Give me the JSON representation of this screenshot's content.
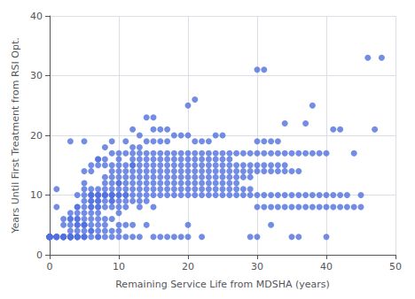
{
  "chart_data": {
    "type": "scatter",
    "xlabel": "Remaining Service Life from MDSHA (years)",
    "ylabel": "Years Until First Treatment from RSI Opt.",
    "x": [
      0,
      0,
      0,
      0,
      0,
      0,
      0,
      0,
      0,
      0,
      0,
      0,
      0,
      0,
      0,
      0,
      0,
      0,
      0,
      1,
      1,
      1,
      1,
      1,
      1,
      1,
      2,
      2,
      2,
      2,
      2,
      2,
      2,
      2,
      2,
      3,
      3,
      3,
      3,
      3,
      3,
      3,
      3,
      3,
      3,
      3,
      3,
      3,
      3,
      3,
      4,
      4,
      4,
      4,
      4,
      4,
      4,
      4,
      4,
      4,
      4,
      4,
      4,
      4,
      5,
      5,
      5,
      5,
      5,
      5,
      5,
      5,
      5,
      5,
      5,
      5,
      5,
      5,
      5,
      5,
      6,
      6,
      6,
      6,
      6,
      6,
      6,
      6,
      6,
      6,
      6,
      6,
      6,
      6,
      6,
      6,
      7,
      7,
      7,
      7,
      7,
      7,
      7,
      7,
      7,
      7,
      7,
      7,
      7,
      7,
      7,
      7,
      7,
      8,
      8,
      8,
      8,
      8,
      8,
      8,
      8,
      8,
      8,
      8,
      8,
      8,
      8,
      8,
      9,
      9,
      9,
      9,
      9,
      9,
      9,
      9,
      9,
      9,
      9,
      9,
      9,
      9,
      9,
      9,
      10,
      10,
      10,
      10,
      10,
      10,
      10,
      10,
      10,
      10,
      10,
      10,
      10,
      10,
      10,
      10,
      11,
      11,
      11,
      11,
      11,
      11,
      11,
      11,
      11,
      11,
      11,
      11,
      11,
      12,
      12,
      12,
      12,
      12,
      12,
      12,
      12,
      12,
      12,
      12,
      12,
      12,
      12,
      13,
      13,
      13,
      13,
      13,
      13,
      13,
      13,
      13,
      13,
      13,
      13,
      13,
      14,
      14,
      14,
      14,
      14,
      14,
      14,
      14,
      14,
      14,
      14,
      14,
      15,
      15,
      15,
      15,
      15,
      15,
      15,
      15,
      15,
      15,
      15,
      15,
      15,
      16,
      16,
      16,
      16,
      16,
      16,
      16,
      16,
      16,
      16,
      16,
      17,
      17,
      17,
      17,
      17,
      17,
      17,
      17,
      17,
      17,
      17,
      18,
      18,
      18,
      18,
      18,
      18,
      18,
      18,
      18,
      18,
      19,
      19,
      19,
      19,
      19,
      19,
      19,
      19,
      19,
      19,
      20,
      20,
      20,
      20,
      20,
      20,
      20,
      20,
      20,
      20,
      20,
      20,
      21,
      21,
      21,
      21,
      21,
      21,
      21,
      21,
      21,
      21,
      22,
      22,
      22,
      22,
      22,
      22,
      22,
      22,
      22,
      22,
      23,
      23,
      23,
      23,
      23,
      23,
      23,
      23,
      23,
      24,
      24,
      24,
      24,
      24,
      24,
      24,
      24,
      24,
      25,
      25,
      25,
      25,
      25,
      25,
      25,
      25,
      25,
      26,
      26,
      26,
      26,
      26,
      26,
      26,
      26,
      27,
      27,
      27,
      27,
      27,
      27,
      27,
      28,
      28,
      28,
      28,
      28,
      28,
      29,
      29,
      29,
      29,
      29,
      29,
      29,
      30,
      30,
      30,
      30,
      30,
      30,
      30,
      30,
      31,
      31,
      31,
      31,
      31,
      31,
      31,
      32,
      32,
      32,
      32,
      32,
      32,
      32,
      33,
      33,
      33,
      33,
      33,
      33,
      34,
      34,
      34,
      34,
      34,
      34,
      35,
      35,
      35,
      35,
      35,
      36,
      36,
      36,
      36,
      36,
      37,
      37,
      37,
      37,
      38,
      38,
      38,
      38,
      39,
      39,
      39,
      40,
      40,
      40,
      40,
      41,
      41,
      41,
      42,
      42,
      42,
      43,
      43,
      44,
      44,
      45,
      45,
      46,
      47,
      48
    ],
    "y": [
      3,
      3,
      3,
      3,
      3,
      3,
      3,
      3,
      3,
      3,
      3,
      3,
      3,
      3,
      3,
      3,
      3,
      3,
      3,
      3,
      3,
      3,
      3,
      3,
      8,
      11,
      3,
      3,
      3,
      3,
      3,
      3,
      3,
      5,
      6,
      3,
      3,
      3,
      3,
      3,
      3,
      3,
      3,
      3,
      4,
      5,
      6,
      6,
      7,
      19,
      3,
      3,
      3,
      3,
      3,
      4,
      5,
      5,
      6,
      6,
      7,
      8,
      8,
      10,
      3,
      3,
      3,
      4,
      5,
      5,
      5,
      6,
      7,
      8,
      9,
      10,
      11,
      12,
      14,
      19,
      3,
      4,
      4,
      5,
      6,
      7,
      8,
      8,
      9,
      9,
      10,
      10,
      10,
      11,
      14,
      15,
      3,
      3,
      4,
      5,
      6,
      7,
      8,
      8,
      9,
      9,
      10,
      10,
      10,
      11,
      15,
      16,
      16,
      3,
      4,
      5,
      6,
      8,
      9,
      10,
      10,
      10,
      11,
      12,
      13,
      15,
      16,
      18,
      3,
      4,
      6,
      8,
      9,
      9,
      10,
      10,
      10,
      11,
      12,
      13,
      14,
      15,
      17,
      19,
      3,
      4,
      5,
      7,
      8,
      9,
      10,
      10,
      11,
      12,
      12,
      13,
      14,
      15,
      16,
      17,
      3,
      5,
      8,
      9,
      10,
      10,
      11,
      12,
      13,
      14,
      15,
      17,
      19,
      3,
      5,
      9,
      10,
      11,
      12,
      13,
      14,
      15,
      15,
      16,
      17,
      18,
      21,
      3,
      8,
      9,
      10,
      11,
      12,
      13,
      14,
      15,
      16,
      17,
      18,
      20,
      5,
      9,
      10,
      11,
      12,
      13,
      14,
      15,
      16,
      17,
      19,
      23,
      3,
      8,
      10,
      11,
      12,
      13,
      14,
      15,
      16,
      17,
      19,
      21,
      23,
      3,
      10,
      11,
      12,
      13,
      14,
      15,
      16,
      17,
      19,
      21,
      3,
      10,
      11,
      12,
      13,
      14,
      15,
      16,
      17,
      19,
      21,
      3,
      10,
      11,
      12,
      13,
      14,
      15,
      16,
      17,
      20,
      3,
      10,
      11,
      12,
      13,
      14,
      15,
      16,
      17,
      20,
      3,
      5,
      10,
      11,
      12,
      13,
      14,
      15,
      16,
      17,
      20,
      25,
      10,
      11,
      12,
      13,
      14,
      15,
      16,
      17,
      19,
      26,
      3,
      10,
      11,
      12,
      13,
      14,
      15,
      16,
      17,
      19,
      10,
      11,
      12,
      13,
      14,
      15,
      16,
      17,
      19,
      10,
      11,
      12,
      13,
      14,
      15,
      16,
      17,
      20,
      10,
      11,
      12,
      13,
      14,
      15,
      16,
      17,
      20,
      10,
      11,
      12,
      13,
      14,
      15,
      16,
      17,
      10,
      11,
      12,
      13,
      14,
      15,
      17,
      10,
      11,
      13,
      14,
      15,
      17,
      3,
      10,
      11,
      13,
      14,
      15,
      17,
      3,
      8,
      10,
      14,
      15,
      17,
      19,
      31,
      8,
      10,
      14,
      15,
      17,
      19,
      31,
      5,
      8,
      10,
      14,
      15,
      17,
      19,
      8,
      10,
      14,
      15,
      17,
      19,
      8,
      10,
      14,
      15,
      17,
      22,
      3,
      8,
      10,
      14,
      17,
      3,
      8,
      10,
      14,
      17,
      8,
      10,
      17,
      22,
      8,
      10,
      17,
      25,
      8,
      10,
      17,
      3,
      8,
      10,
      17,
      8,
      10,
      21,
      8,
      10,
      21,
      8,
      10,
      8,
      17,
      8,
      10,
      33,
      21,
      33
    ],
    "xlim": [
      0,
      50
    ],
    "ylim": [
      0,
      40
    ],
    "xticks": [
      0,
      10,
      20,
      30,
      40,
      50
    ],
    "yticks": [
      0,
      10,
      20,
      30,
      40
    ],
    "marker": "circle",
    "grid": true
  }
}
